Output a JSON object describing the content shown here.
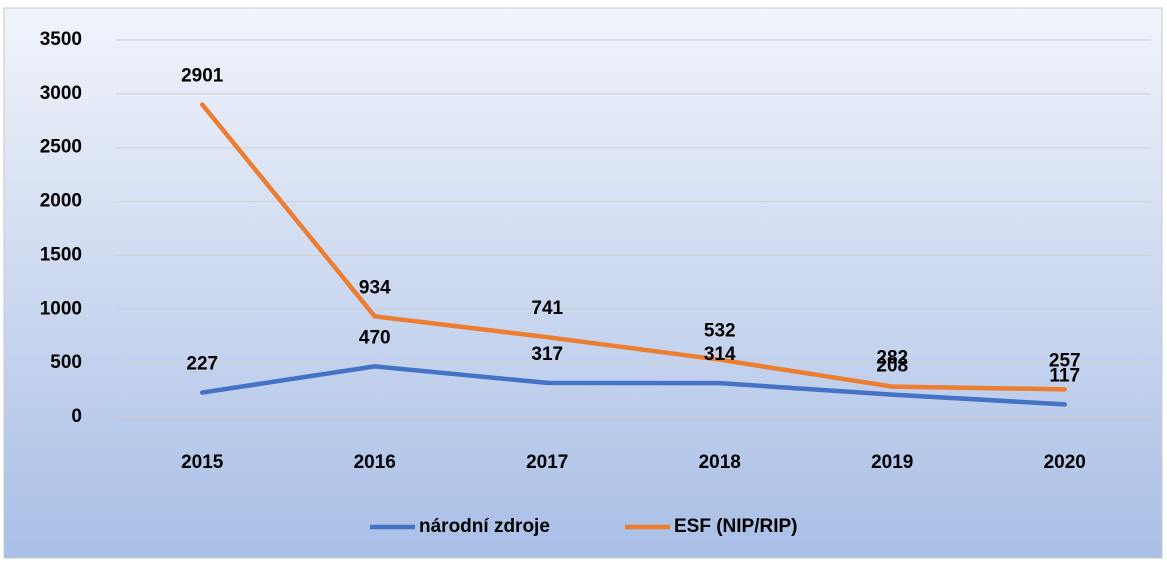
{
  "chart_data": {
    "type": "line",
    "categories": [
      "2015",
      "2016",
      "2017",
      "2018",
      "2019",
      "2020"
    ],
    "series": [
      {
        "name": "národní zdroje",
        "color": "#4472c4",
        "values": [
          227,
          470,
          317,
          314,
          208,
          117
        ]
      },
      {
        "name": "ESF (NIP/RIP)",
        "color": "#ed7d31",
        "values": [
          2901,
          934,
          741,
          532,
          282,
          257
        ]
      }
    ],
    "ylim": [
      0,
      3500
    ],
    "yticks": [
      0,
      500,
      1000,
      1500,
      2000,
      2500,
      3000,
      3500
    ],
    "grid": true,
    "legend": "bottom"
  }
}
